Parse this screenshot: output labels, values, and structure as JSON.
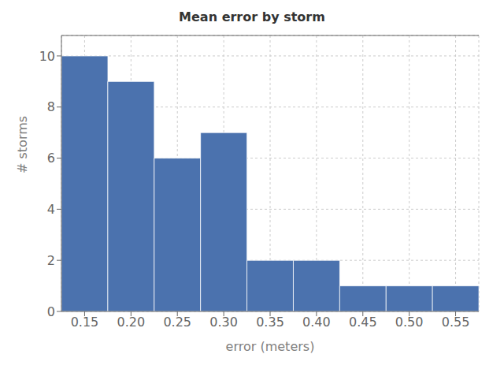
{
  "chart_data": {
    "type": "histogram",
    "title": "Mean error by storm",
    "xlabel": "error (meters)",
    "ylabel": "# storms",
    "bins": [
      0.125,
      0.175,
      0.225,
      0.275,
      0.325,
      0.375,
      0.425,
      0.475,
      0.525,
      0.575
    ],
    "values": [
      10,
      9,
      6,
      7,
      2,
      2,
      1,
      1,
      1
    ],
    "color": "#4b72ae",
    "xlim": [
      0.125,
      0.575
    ],
    "ylim": [
      0,
      10.8
    ],
    "xticks": [
      0.15,
      {
        "value": 0.2,
        "label": "0.20"
      },
      0.25,
      {
        "value": 0.3,
        "label": "0.30"
      },
      0.35,
      {
        "value": 0.4,
        "label": "0.40"
      },
      0.45,
      {
        "value": 0.5,
        "label": "0.50"
      },
      0.55
    ],
    "yticks": [
      0,
      2,
      4,
      6,
      8,
      10
    ],
    "grid": true
  }
}
